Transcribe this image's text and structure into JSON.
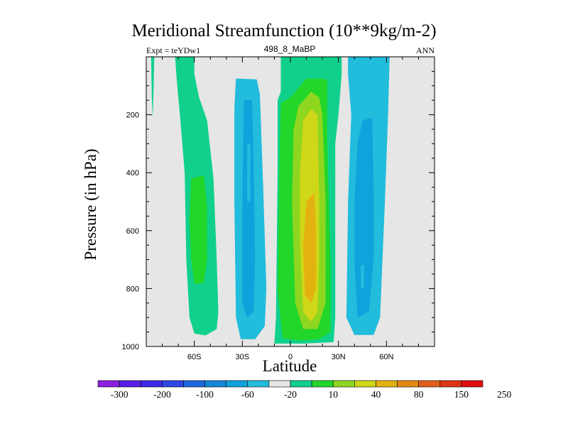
{
  "chart_data": {
    "type": "filled-contour",
    "title": "Meridional Streamfunction (10**9kg/m-2)",
    "left_label": "Expt = teYDw1",
    "center_label": "498_8_MaBP",
    "right_label": "ANN",
    "xlabel": "Latitude",
    "ylabel": "Pressure (in hPa)",
    "xlim": [
      -90,
      90
    ],
    "ylim": [
      1000,
      0
    ],
    "x_ticks": [
      {
        "value": -60,
        "label": "60S"
      },
      {
        "value": -30,
        "label": "30S"
      },
      {
        "value": 0,
        "label": "0"
      },
      {
        "value": 30,
        "label": "30N"
      },
      {
        "value": 60,
        "label": "60N"
      }
    ],
    "y_ticks": [
      {
        "value": 200,
        "label": "200"
      },
      {
        "value": 400,
        "label": "400"
      },
      {
        "value": 600,
        "label": "600"
      },
      {
        "value": 800,
        "label": "800"
      },
      {
        "value": 1000,
        "label": "1000"
      }
    ],
    "colorbar": {
      "labels": [
        "-300",
        "-200",
        "-100",
        "-60",
        "-20",
        "10",
        "40",
        "80",
        "150",
        "250"
      ],
      "colors": [
        "#8a20e0",
        "#5a1ee8",
        "#3c28e6",
        "#2e48e2",
        "#1e68dc",
        "#1486d8",
        "#10a2dc",
        "#22bcdc",
        "#e6e6e6",
        "#10d08c",
        "#22d62a",
        "#8ed620",
        "#d0d618",
        "#e4b210",
        "#e28a12",
        "#e0601a",
        "#de3416",
        "#e00e0e"
      ]
    },
    "background_color": "#e6e6e6",
    "cells": [
      {
        "name": "southern-polar-positive-cell",
        "lat_range": [
          -72,
          -36
        ],
        "p_range": [
          0,
          960
        ],
        "levels": [
          "10",
          "40"
        ],
        "description": "positive (green) cell with core of 10-40 around 450-700 hPa"
      },
      {
        "name": "southern-negative-cell",
        "lat_range": [
          -34,
          -12
        ],
        "p_range": [
          75,
          975
        ],
        "levels": [
          "-20",
          "-60"
        ],
        "description": "negative (blue) cell, core about -60 near 30S"
      },
      {
        "name": "tropical-positive-cell",
        "lat_range": [
          -8,
          35
        ],
        "p_range": [
          0,
          990
        ],
        "levels": [
          "10",
          "40",
          "80",
          "150"
        ],
        "description": "strong positive Hadley cell centred near 10N, core 80-150 at 400-850 hPa"
      },
      {
        "name": "northern-negative-cell",
        "lat_range": [
          33,
          62
        ],
        "p_range": [
          0,
          960
        ],
        "levels": [
          "-20",
          "-60"
        ],
        "description": "negative (blue) cell centred near 45N"
      }
    ]
  }
}
